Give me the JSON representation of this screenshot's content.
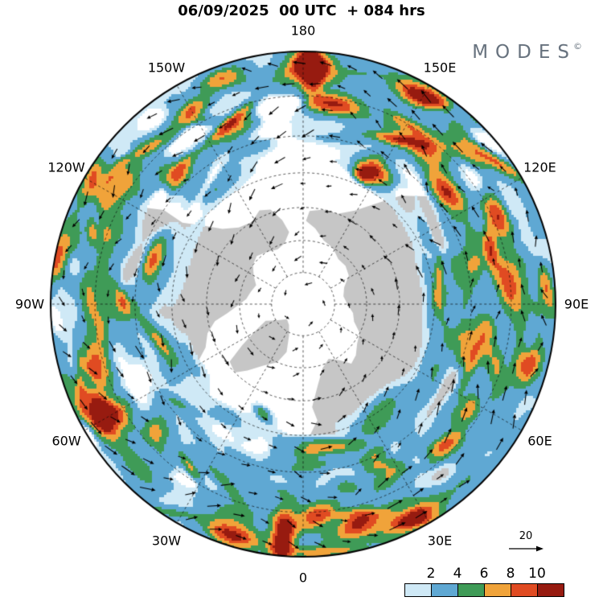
{
  "header": {
    "title": "06/09/2025  00 UTC  + 084 hrs",
    "logo": "MODES",
    "copyright": "©"
  },
  "legend": {
    "colorbar_ticks": [
      "2",
      "4",
      "6",
      "8",
      "10"
    ],
    "reference_value": "20"
  },
  "chart_data": {
    "type": "heatmap",
    "title": "06/09/2025 00 UTC + 084 hrs",
    "projection": "north_polar_stereographic",
    "edge_latitude_deg": 20,
    "land_color": "#c6c6c6",
    "contour_levels": [
      1,
      2,
      4,
      6,
      8,
      10
    ],
    "level_colors": [
      "#ffffff",
      "#cfe9f6",
      "#5fa8d3",
      "#3f9b57",
      "#f0a33a",
      "#e04b22",
      "#971b10"
    ],
    "latitude_circles_deg": [
      80,
      70,
      60,
      50,
      40,
      30
    ],
    "longitude_labels": [
      {
        "text": "180",
        "lon": 180
      },
      {
        "text": "150W",
        "lon": -150
      },
      {
        "text": "150E",
        "lon": 150
      },
      {
        "text": "120W",
        "lon": -120
      },
      {
        "text": "120E",
        "lon": 120
      },
      {
        "text": "90W",
        "lon": -90
      },
      {
        "text": "90E",
        "lon": 90
      },
      {
        "text": "60W",
        "lon": -60
      },
      {
        "text": "60E",
        "lon": 60
      },
      {
        "text": "30W",
        "lon": -30
      },
      {
        "text": "30E",
        "lon": 30
      },
      {
        "text": "0",
        "lon": 0
      }
    ],
    "wind_vectors": {
      "reference_speed": 20,
      "direction": "predominantly westerly, circling the pole"
    },
    "maxima": [
      {
        "lon": 178,
        "r_frac": 0.93,
        "value": 11,
        "orient": "radial"
      },
      {
        "lon": 171,
        "r_frac": 0.8,
        "value": 8
      },
      {
        "lon": -160,
        "r_frac": 0.95,
        "value": 7
      },
      {
        "lon": -150,
        "r_frac": 0.88,
        "value": 7
      },
      {
        "lon": -120,
        "r_frac": 0.97,
        "value": 6
      },
      {
        "lon": -75,
        "r_frac": 0.85,
        "value": 6
      },
      {
        "lon": -62,
        "r_frac": 0.93,
        "value": 7
      },
      {
        "lon": -18,
        "r_frac": 0.96,
        "value": 8
      },
      {
        "lon": -5,
        "r_frac": 0.93,
        "value": 11,
        "orient": "radial"
      },
      {
        "lon": 13,
        "r_frac": 0.9,
        "value": 10
      },
      {
        "lon": 28,
        "r_frac": 0.95,
        "value": 8
      },
      {
        "lon": 45,
        "r_frac": 0.8,
        "value": 6
      },
      {
        "lon": 95,
        "r_frac": 0.82,
        "value": 7
      },
      {
        "lon": 115,
        "r_frac": 0.85,
        "value": 8
      },
      {
        "lon": 128,
        "r_frac": 0.72,
        "value": 9
      },
      {
        "lon": 152,
        "r_frac": 0.95,
        "value": 8
      },
      {
        "lon": 148,
        "r_frac": 0.6,
        "value": 7
      }
    ]
  }
}
